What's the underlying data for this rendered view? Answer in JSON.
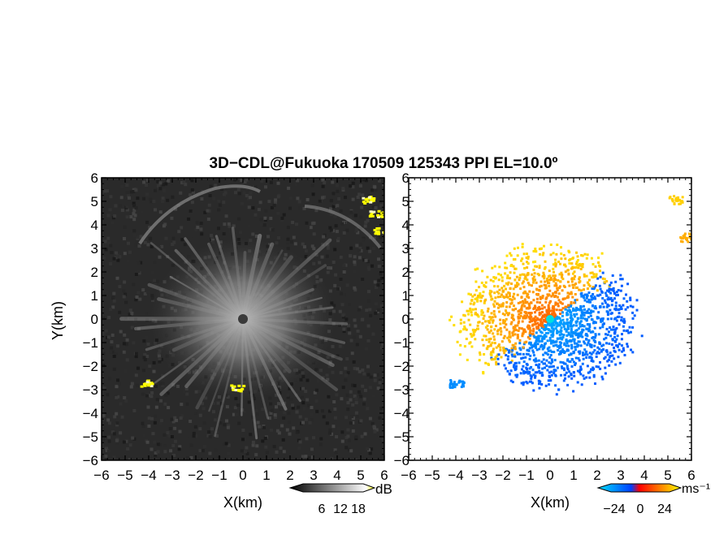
{
  "title": "3D−CDL@Fukuoka 170509 125343 PPI EL=10.0º",
  "chart_data": [
    {
      "type": "heatmap",
      "name": "reflectivity-ppi",
      "xlabel": "X(km)",
      "ylabel": "Y(km)",
      "xlim": [
        -6,
        6
      ],
      "ylim": [
        -6,
        6
      ],
      "xticks": [
        "−6",
        "−5",
        "−4",
        "−3",
        "−2",
        "−1",
        "0",
        "1",
        "2",
        "3",
        "4",
        "5",
        "6"
      ],
      "yticks": [
        "6",
        "5",
        "4",
        "3",
        "2",
        "1",
        "0",
        "−1",
        "−2",
        "−3",
        "−4",
        "−5",
        "−6"
      ],
      "colorbar": {
        "label": "dB",
        "ticks": [
          "6",
          "12",
          "18"
        ],
        "range": [
          0,
          22
        ],
        "colors": [
          "#000000",
          "#ffffff",
          "#ffff00"
        ]
      },
      "features": [
        {
          "kind": "ground-clutter-yellow",
          "x": -4.1,
          "y": -2.7
        },
        {
          "kind": "ground-clutter-yellow",
          "x": -0.3,
          "y": -2.9
        },
        {
          "kind": "ground-clutter-yellow",
          "x": 5.3,
          "y": 5.1
        },
        {
          "kind": "ground-clutter-yellow",
          "x": 5.6,
          "y": 4.5
        },
        {
          "kind": "ground-clutter-yellow",
          "x": 5.8,
          "y": 3.8
        }
      ]
    },
    {
      "type": "heatmap",
      "name": "doppler-velocity-ppi",
      "xlabel": "X(km)",
      "xlim": [
        -6,
        6
      ],
      "ylim": [
        -6,
        6
      ],
      "xticks": [
        "−6",
        "−5",
        "−4",
        "−3",
        "−2",
        "−1",
        "0",
        "1",
        "2",
        "3",
        "4",
        "5",
        "6"
      ],
      "yticks": [
        "6",
        "5",
        "4",
        "3",
        "2",
        "1",
        "0",
        "−1",
        "−2",
        "−3",
        "−4",
        "−5",
        "−6"
      ],
      "colorbar": {
        "label": "ms⁻¹",
        "ticks": [
          "−24",
          "0",
          "24"
        ],
        "range": [
          -30,
          30
        ],
        "colors": [
          "#00c8ff",
          "#0050ff",
          "#ff0000",
          "#ffff00"
        ]
      },
      "features": [
        {
          "kind": "approaching-flow",
          "direction_deg": 135,
          "velocity": -10
        },
        {
          "kind": "receding-flow",
          "direction_deg": 315,
          "velocity": 10
        },
        {
          "kind": "echo-patch",
          "x": -4.0,
          "y": -2.7,
          "velocity": -15
        },
        {
          "kind": "echo-patch",
          "x": 5.3,
          "y": 5.1,
          "velocity": 25
        },
        {
          "kind": "echo-patch",
          "x": 5.8,
          "y": 3.5,
          "velocity": 20
        }
      ]
    }
  ],
  "colors": {
    "axis": "#000000",
    "background": "#ffffff"
  }
}
